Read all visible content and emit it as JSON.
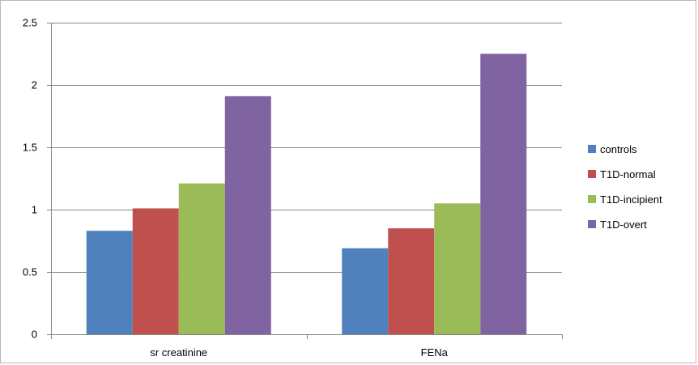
{
  "chart_data": {
    "type": "bar",
    "title": "",
    "xlabel": "",
    "ylabel": "",
    "categories": [
      "sr creatinine",
      "FENa"
    ],
    "series": [
      {
        "name": "controls",
        "color": "#4f81bd",
        "values": [
          0.83,
          0.69
        ]
      },
      {
        "name": "T1D-normal",
        "color": "#c0504d",
        "values": [
          1.01,
          0.85
        ]
      },
      {
        "name": "T1D-incipient",
        "color": "#9bbb59",
        "values": [
          1.21,
          1.05
        ]
      },
      {
        "name": "T1D-overt",
        "color": "#8064a2",
        "values": [
          1.91,
          2.25
        ]
      }
    ],
    "ylim": [
      0,
      2.5
    ],
    "yticks": [
      "0",
      "0.5",
      "1",
      "1.5",
      "2",
      "2.5"
    ],
    "grid": true,
    "legend_position": "right"
  }
}
